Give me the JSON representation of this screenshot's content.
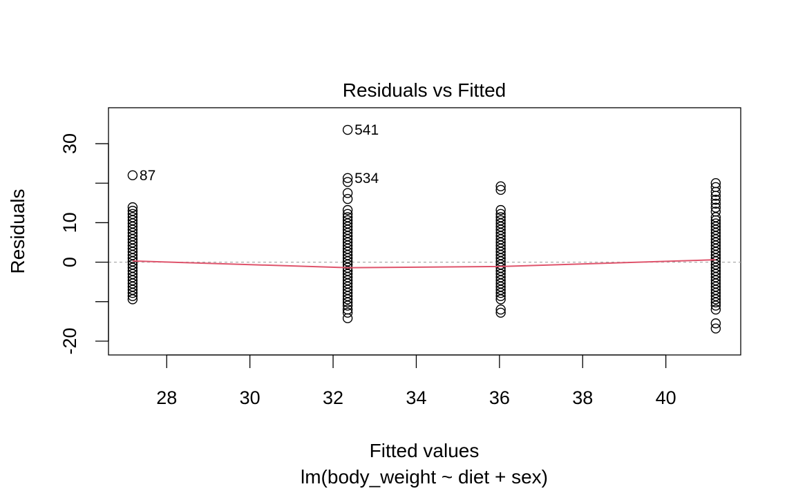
{
  "chart_data": {
    "type": "scatter",
    "title": "Residuals vs Fitted",
    "xlabel": "Fitted values",
    "subtitle": "lm(body_weight ~ diet + sex)",
    "ylabel": "Residuals",
    "xlim": [
      26.6,
      41.8
    ],
    "ylim": [
      -23.5,
      39.1
    ],
    "xticks": [
      28,
      30,
      32,
      34,
      36,
      38,
      40
    ],
    "yticks": [
      -20,
      -10,
      0,
      10,
      20,
      30
    ],
    "ytick_labels": [
      "-20",
      "",
      "0",
      "10",
      "",
      "30"
    ],
    "reference_line_y": 0,
    "colors": {
      "points": "#000000",
      "smooth": "#df536b",
      "reference": "#aaaaaa"
    },
    "groups": [
      {
        "x": 27.18,
        "residuals": [
          22,
          13.9,
          13,
          12.2,
          11.4,
          10.6,
          9.8,
          9,
          8.2,
          7.4,
          6.6,
          5.8,
          5,
          4.2,
          3.4,
          2.6,
          1.8,
          1,
          0.2,
          -0.6,
          -1.4,
          -2.2,
          -3,
          -3.8,
          -4.6,
          -5.4,
          -6.2,
          -7,
          -7.8,
          -8.6,
          -9.4
        ]
      },
      {
        "x": 32.35,
        "residuals": [
          33.5,
          21.3,
          20.3,
          17.5,
          16,
          13.2,
          12.2,
          11.4,
          10.6,
          9.8,
          9,
          8.2,
          7.4,
          6.6,
          5.8,
          5,
          4.2,
          3.4,
          2.6,
          1.8,
          1,
          0.2,
          -0.6,
          -1.4,
          -2.2,
          -3,
          -3.8,
          -4.6,
          -5.4,
          -6.2,
          -7,
          -7.8,
          -8.6,
          -9.4,
          -10.2,
          -11,
          -12,
          -12.8,
          -14.2
        ]
      },
      {
        "x": 36.03,
        "residuals": [
          19.2,
          18.3,
          13.2,
          12.2,
          11.4,
          10.6,
          9.8,
          9,
          8.2,
          7.4,
          6.6,
          5.8,
          5,
          4.2,
          3.4,
          2.6,
          1.8,
          1,
          0.2,
          -0.6,
          -1.4,
          -2.2,
          -3,
          -3.8,
          -4.6,
          -5.4,
          -6.2,
          -7,
          -7.8,
          -8.6,
          -9.4,
          -12,
          -12.8
        ]
      },
      {
        "x": 41.2,
        "residuals": [
          20,
          19,
          17.8,
          16.8,
          15.8,
          14.8,
          13.8,
          12.8,
          11.4,
          10.6,
          9.8,
          9,
          8.2,
          7.4,
          6.6,
          5.8,
          5,
          4.2,
          3.4,
          2.6,
          1.8,
          1,
          0.2,
          -0.6,
          -1.4,
          -2.2,
          -3,
          -3.8,
          -4.6,
          -5.4,
          -6.2,
          -7,
          -7.8,
          -8.6,
          -9.4,
          -10.2,
          -11,
          -12,
          -15.5,
          -16.8
        ]
      }
    ],
    "smooth_line": {
      "x": [
        27.18,
        32.35,
        36.03,
        41.2
      ],
      "y": [
        0.3,
        -1.4,
        -1.1,
        0.6
      ]
    },
    "annotations": [
      {
        "label": "87",
        "x": 27.18,
        "y": 22
      },
      {
        "label": "541",
        "x": 32.35,
        "y": 33.5
      },
      {
        "label": "534",
        "x": 32.35,
        "y": 21.3
      }
    ]
  }
}
